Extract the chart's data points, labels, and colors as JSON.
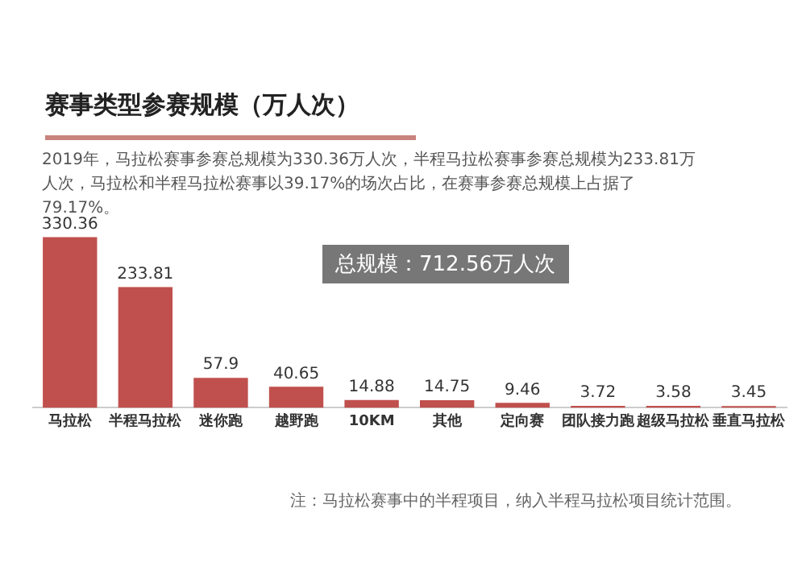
{
  "chart_data": {
    "type": "bar",
    "title": "赛事类型参赛规模（万人次）",
    "subtitle": "2019年，马拉松赛事参赛总规模为330.36万人次，半程马拉松赛事参赛总规模为233.81万人次，马拉松和半程马拉松赛事以39.17%的场次占比，在赛事参赛总规模上占据了79.17%。",
    "categories": [
      "马拉松",
      "半程马拉松",
      "迷你跑",
      "越野跑",
      "10KM",
      "其他",
      "定向赛",
      "团队接力跑",
      "超级马拉松",
      "垂直马拉松"
    ],
    "values": [
      330.36,
      233.81,
      57.9,
      40.65,
      14.88,
      14.75,
      9.46,
      3.72,
      3.58,
      3.45
    ],
    "color": "#c0504d",
    "data_labels": true,
    "grid": false,
    "legend": false,
    "annotations": [
      "总规模：712.56万人次",
      "注：马拉松赛事中的半程项目，纳入半程马拉松项目统计范围。"
    ]
  }
}
